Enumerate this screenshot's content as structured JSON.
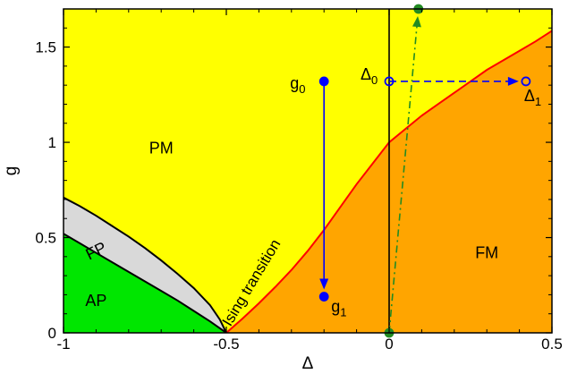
{
  "chart_data": {
    "type": "line",
    "title": "",
    "xlabel": "Δ",
    "ylabel": "g",
    "xlim": [
      -1,
      0.5
    ],
    "ylim": [
      0,
      1.7
    ],
    "x_ticks": [
      -1,
      -0.5,
      0,
      0.5
    ],
    "x_tick_labels": [
      "-1",
      "-0.5",
      "0",
      "0.5"
    ],
    "y_ticks": [
      0,
      0.5,
      1,
      1.5
    ],
    "y_tick_labels": [
      "0",
      "0.5",
      "1",
      "1.5"
    ],
    "grid": false,
    "legend": "none",
    "regions": [
      {
        "label": "PM",
        "color": "#ffff00",
        "label_at": [
          -0.7,
          0.97
        ]
      },
      {
        "label": "FP",
        "color": "#d9d9d9",
        "label_at": [
          -0.9,
          0.43
        ]
      },
      {
        "label": "AP",
        "color": "#00e600",
        "label_at": [
          -0.9,
          0.17
        ]
      },
      {
        "label": "FM",
        "color": "#ffa500",
        "label_at": [
          0.3,
          0.42
        ]
      }
    ],
    "boundaries": {
      "ising_transition": {
        "name": "Ising transition",
        "color": "#ff0000",
        "x": [
          -0.5,
          -0.45,
          -0.4,
          -0.35,
          -0.3,
          -0.25,
          -0.2,
          -0.15,
          -0.1,
          -0.05,
          0.0,
          0.05,
          0.1,
          0.15,
          0.2,
          0.25,
          0.3,
          0.35,
          0.4,
          0.45,
          0.5
        ],
        "y": [
          0.0,
          0.075,
          0.155,
          0.24,
          0.33,
          0.43,
          0.54,
          0.66,
          0.78,
          0.89,
          1.0,
          1.07,
          1.14,
          1.2,
          1.26,
          1.32,
          1.38,
          1.43,
          1.48,
          1.53,
          1.585
        ]
      },
      "fp_upper": {
        "color": "#000000",
        "x": [
          -1.0,
          -0.95,
          -0.9,
          -0.85,
          -0.8,
          -0.75,
          -0.7,
          -0.65,
          -0.6,
          -0.55,
          -0.52,
          -0.5
        ],
        "y": [
          0.71,
          0.665,
          0.615,
          0.56,
          0.505,
          0.445,
          0.38,
          0.31,
          0.235,
          0.145,
          0.07,
          0.0
        ]
      },
      "fp_lower": {
        "color": "#000000",
        "x": [
          -1.0,
          -0.95,
          -0.9,
          -0.85,
          -0.8,
          -0.75,
          -0.7,
          -0.65,
          -0.6,
          -0.55,
          -0.5
        ],
        "y": [
          0.52,
          0.47,
          0.42,
          0.37,
          0.32,
          0.27,
          0.22,
          0.17,
          0.115,
          0.06,
          0.0
        ]
      },
      "vertical_zero": {
        "color": "#000000",
        "x": [
          0,
          0
        ],
        "y": [
          0,
          1.7
        ]
      }
    },
    "annotations": [
      {
        "text": "Ising transition",
        "at": [
          -0.41,
          0.25
        ],
        "rotate_deg": -59
      }
    ],
    "quench_arrows": [
      {
        "from": [
          -0.2,
          1.32
        ],
        "to": [
          -0.2,
          0.19
        ],
        "color": "#0000ff",
        "style": "solid",
        "start_label": "g",
        "start_sub": "0",
        "end_label": "g",
        "end_sub": "1",
        "start_marker": "filled",
        "end_marker": "filled"
      },
      {
        "from": [
          0.0,
          1.32
        ],
        "to": [
          0.42,
          1.32
        ],
        "color": "#0000ff",
        "style": "dashed",
        "start_label": "Δ",
        "start_sub": "0",
        "end_label": "Δ",
        "end_sub": "1",
        "start_marker": "open",
        "end_marker": "open"
      },
      {
        "from": [
          0.0,
          0.0
        ],
        "to": [
          0.09,
          1.7
        ],
        "color": "#228b22",
        "style": "dashdot",
        "start_marker": "filled",
        "end_marker": "filled"
      }
    ]
  }
}
